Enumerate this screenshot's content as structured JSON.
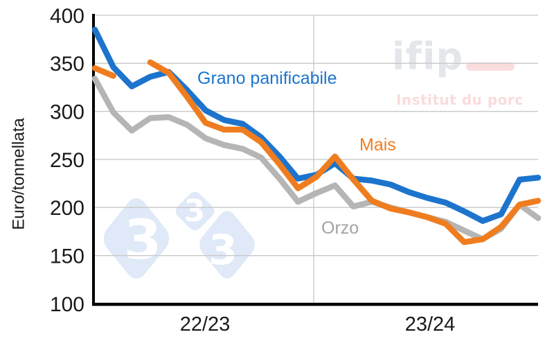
{
  "watermarks": {
    "logo_333": {
      "glyphs": [
        "3",
        "3",
        "3"
      ]
    },
    "ifip": {
      "logo_text": "ifip",
      "tagline": "Institut du porc"
    }
  },
  "colors": {
    "grid": "#c8c8c8",
    "axis": "#000000",
    "tick_text": "#1a1a1a",
    "watermark_blue": "#dfe9f7",
    "ifip_gray": "#e3e6ea",
    "ifip_pink": "#fbdcdc",
    "orzo_label": "#a1a2a4"
  },
  "chart_data": {
    "type": "line",
    "title": "",
    "ylabel": "Euro/tonnellata",
    "ylim": [
      100,
      400
    ],
    "yticks": [
      400,
      350,
      300,
      250,
      200,
      150,
      100
    ],
    "x_campaign_labels": [
      "22/23",
      "23/24"
    ],
    "grid": true,
    "campaign_separator": true,
    "n_points": 25,
    "series": [
      {
        "name": "Orzo",
        "color": "#b5b5b6",
        "values": [
          334,
          299,
          280,
          293,
          294,
          286,
          272,
          265,
          261,
          252,
          230,
          206,
          215,
          223,
          201,
          206,
          200,
          195,
          190,
          185,
          176,
          167,
          178,
          203,
          189
        ]
      },
      {
        "name": "Grano panificabile",
        "color": "#1c74cd",
        "values": [
          385,
          346,
          326,
          336,
          341,
          322,
          301,
          291,
          287,
          273,
          253,
          230,
          234,
          246,
          230,
          228,
          224,
          216,
          210,
          205,
          196,
          186,
          193,
          229,
          231
        ]
      },
      {
        "name": "Mais",
        "color": "#ef7d1f",
        "values": [
          345,
          337,
          null,
          351,
          340,
          315,
          288,
          281,
          281,
          268,
          245,
          220,
          232,
          253,
          229,
          207,
          199,
          195,
          190,
          183,
          164,
          167,
          180,
          203,
          207
        ]
      }
    ]
  }
}
